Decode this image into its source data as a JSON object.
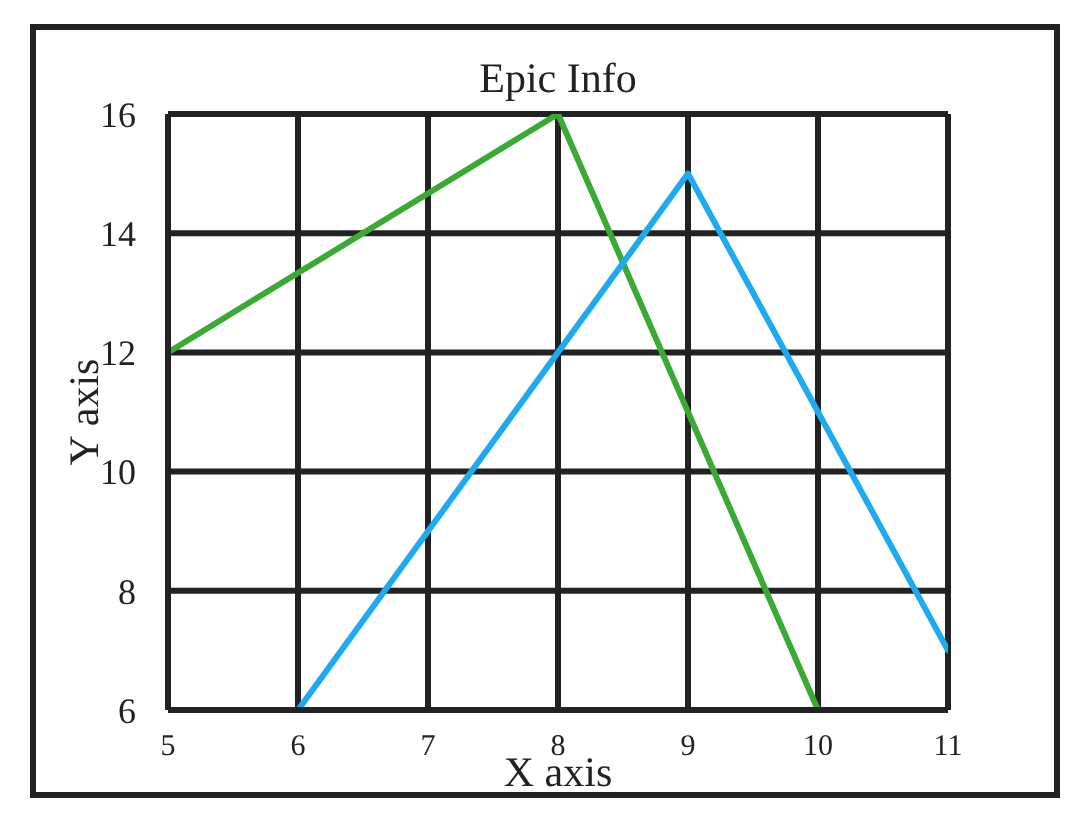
{
  "chart_data": {
    "type": "line",
    "title": "Epic Info",
    "xlabel": "X axis",
    "ylabel": "Y axis",
    "series": [
      {
        "color": "#3aaa35",
        "x": [
          5,
          8,
          10
        ],
        "values": [
          12,
          16,
          6
        ]
      },
      {
        "color": "#1eaaf1",
        "x": [
          6,
          9,
          11
        ],
        "values": [
          6,
          15,
          7
        ]
      }
    ],
    "xlim": [
      5,
      11
    ],
    "xticks": [
      5,
      6,
      7,
      8,
      9,
      10,
      11
    ],
    "ylim": [
      6,
      16
    ],
    "yticks": [
      6,
      8,
      10,
      12,
      14,
      16
    ],
    "grid": true
  }
}
